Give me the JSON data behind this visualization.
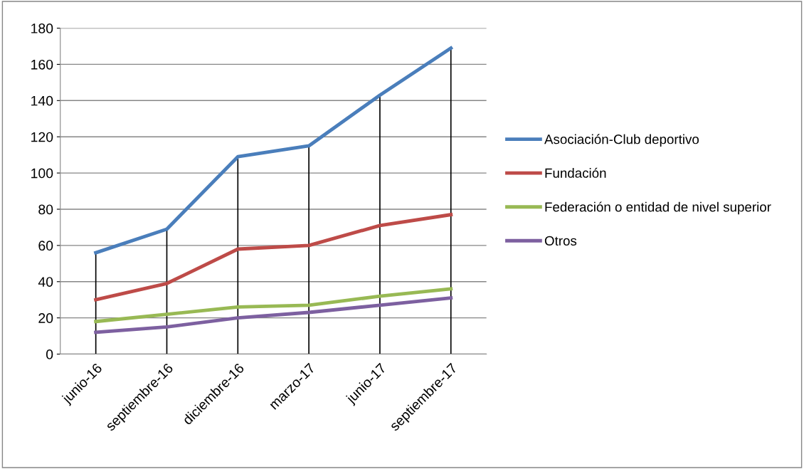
{
  "chart_data": {
    "type": "line",
    "categories": [
      "junio-16",
      "septiembre-16",
      "diciembre-16",
      "marzo-17",
      "junio-17",
      "septiembre-17"
    ],
    "series": [
      {
        "name": "Asociación-Club deportivo",
        "color": "#4a7ebb",
        "values": [
          56,
          69,
          109,
          115,
          143,
          169
        ],
        "errors": [
          [
            0,
            56
          ],
          [
            0,
            69
          ],
          [
            0,
            109
          ],
          [
            0,
            115
          ],
          [
            0,
            143
          ],
          [
            0,
            169
          ]
        ]
      },
      {
        "name": "Fundación",
        "color": "#be4b48",
        "values": [
          30,
          39,
          58,
          60,
          71,
          77
        ]
      },
      {
        "name": "Federación o entidad de nivel superior",
        "color": "#98b954",
        "values": [
          18,
          22,
          26,
          27,
          32,
          36
        ]
      },
      {
        "name": "Otros",
        "color": "#7d60a0",
        "values": [
          12,
          15,
          20,
          23,
          27,
          31
        ]
      }
    ],
    "ylim": [
      0,
      180
    ],
    "yticks": [
      0,
      20,
      40,
      60,
      80,
      100,
      120,
      140,
      160,
      180
    ],
    "grid": "y",
    "legend": "right",
    "marker": "none",
    "line_style": "solid"
  }
}
